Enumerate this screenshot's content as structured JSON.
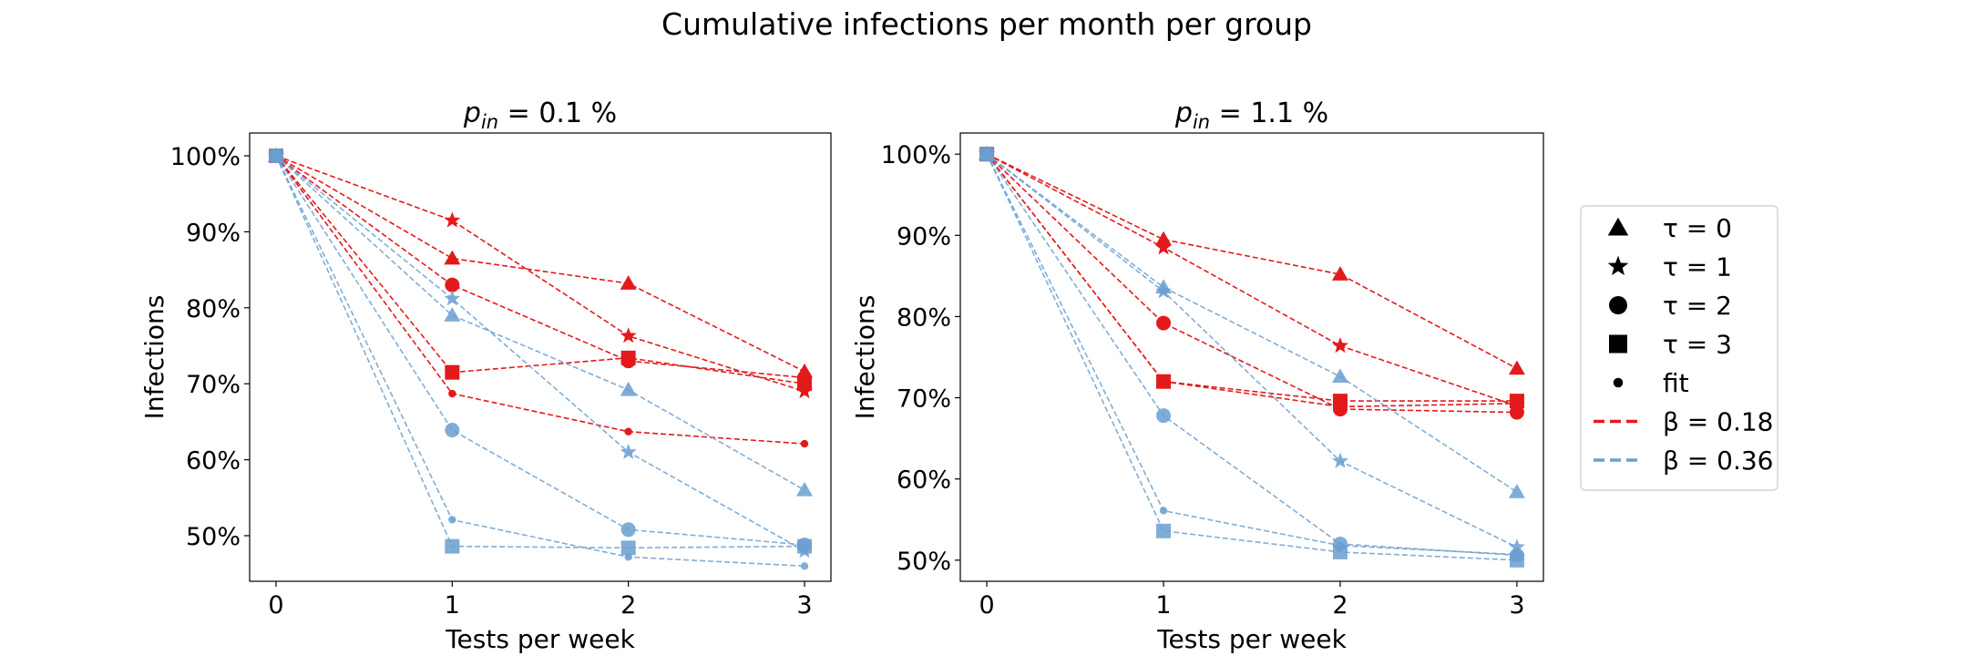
{
  "figure": {
    "title": "Cumulative infections per month per group"
  },
  "colors": {
    "beta_0_18": "#e31a1c",
    "beta_0_36": "#6a9fd0"
  },
  "legend": {
    "entries": [
      {
        "marker": "triangle",
        "label_main": "τ = 0"
      },
      {
        "marker": "star",
        "label_main": "τ = 1"
      },
      {
        "marker": "circle",
        "label_main": "τ = 2"
      },
      {
        "marker": "square",
        "label_main": "τ = 3"
      },
      {
        "marker": "dot",
        "label_main": "fit"
      },
      {
        "line": "beta_0_18",
        "label_main": "β = 0.18"
      },
      {
        "line": "beta_0_36",
        "label_main": "β = 0.36"
      }
    ]
  },
  "chart_data": [
    {
      "type": "line",
      "title_main": "p",
      "title_sub": "in",
      "title_rest": " = 0.1 %",
      "xlabel": "Tests per week",
      "ylabel": "Infections",
      "x": [
        0,
        1,
        2,
        3
      ],
      "xticks": [
        "0",
        "1",
        "2",
        "3"
      ],
      "yticks": [
        "50%",
        "60%",
        "70%",
        "80%",
        "90%",
        "100%"
      ],
      "ylim": [
        44,
        103
      ],
      "grid": false,
      "series": [
        {
          "beta": "beta_0_18",
          "marker": "triangle",
          "values": [
            100,
            86.5,
            83.2,
            71.6
          ]
        },
        {
          "beta": "beta_0_18",
          "marker": "star",
          "values": [
            100,
            91.5,
            76.3,
            69.0
          ]
        },
        {
          "beta": "beta_0_18",
          "marker": "circle",
          "values": [
            100,
            83.0,
            73.0,
            70.8
          ]
        },
        {
          "beta": "beta_0_18",
          "marker": "square",
          "values": [
            100,
            71.5,
            73.4,
            70.0
          ]
        },
        {
          "beta": "beta_0_18",
          "marker": "dot",
          "values": [
            100,
            68.7,
            63.7,
            62.1
          ]
        },
        {
          "beta": "beta_0_36",
          "marker": "triangle",
          "values": [
            100,
            79.0,
            69.2,
            56.0
          ]
        },
        {
          "beta": "beta_0_36",
          "marker": "star",
          "values": [
            100,
            81.2,
            61.0,
            48.0
          ]
        },
        {
          "beta": "beta_0_36",
          "marker": "circle",
          "values": [
            100,
            63.9,
            50.8,
            48.8
          ]
        },
        {
          "beta": "beta_0_36",
          "marker": "square",
          "values": [
            100,
            48.6,
            48.4,
            48.6
          ]
        },
        {
          "beta": "beta_0_36",
          "marker": "dot",
          "values": [
            100,
            52.1,
            47.2,
            46.0
          ]
        }
      ]
    },
    {
      "type": "line",
      "title_main": "p",
      "title_sub": "in",
      "title_rest": " = 1.1 %",
      "xlabel": "Tests per week",
      "ylabel": "Infections",
      "x": [
        0,
        1,
        2,
        3
      ],
      "xticks": [
        "0",
        "1",
        "2",
        "3"
      ],
      "yticks": [
        "50%",
        "60%",
        "70%",
        "80%",
        "90%",
        "100%"
      ],
      "ylim": [
        47.4,
        102.6
      ],
      "grid": false,
      "series": [
        {
          "beta": "beta_0_18",
          "marker": "triangle",
          "values": [
            100,
            89.5,
            85.2,
            73.6
          ]
        },
        {
          "beta": "beta_0_18",
          "marker": "star",
          "values": [
            100,
            88.5,
            76.4,
            69.0
          ]
        },
        {
          "beta": "beta_0_18",
          "marker": "circle",
          "values": [
            100,
            79.2,
            68.6,
            68.2
          ]
        },
        {
          "beta": "beta_0_18",
          "marker": "square",
          "values": [
            100,
            72.0,
            69.6,
            69.6
          ]
        },
        {
          "beta": "beta_0_18",
          "marker": "dot",
          "values": [
            100,
            72.0,
            68.9,
            69.3
          ]
        },
        {
          "beta": "beta_0_36",
          "marker": "triangle",
          "values": [
            100,
            83.6,
            72.6,
            58.4
          ]
        },
        {
          "beta": "beta_0_36",
          "marker": "star",
          "values": [
            100,
            83.1,
            62.2,
            51.6
          ]
        },
        {
          "beta": "beta_0_36",
          "marker": "circle",
          "values": [
            100,
            67.8,
            52.0,
            50.6
          ]
        },
        {
          "beta": "beta_0_36",
          "marker": "square",
          "values": [
            100,
            53.6,
            51.0,
            50.0
          ]
        },
        {
          "beta": "beta_0_36",
          "marker": "dot",
          "values": [
            100,
            56.1,
            51.8,
            50.7
          ]
        }
      ]
    }
  ]
}
